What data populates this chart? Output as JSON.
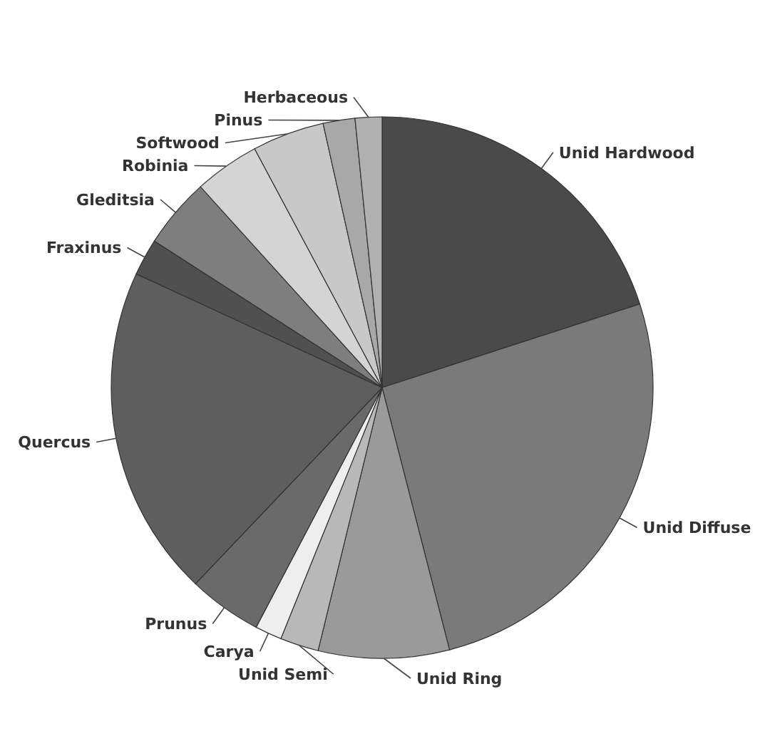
{
  "chart_data": {
    "type": "pie",
    "categories": [
      "Unid Hardwood",
      "Unid Diffuse",
      "Unid Ring",
      "Unid Semi",
      "Carya",
      "Prunus",
      "Quercus",
      "Fraxinus",
      "Gleditsia",
      "Robinia",
      "Softwood",
      "Pinus",
      "Herbaceous"
    ],
    "values": [
      20,
      26,
      7.8,
      2.3,
      1.6,
      4.4,
      19.8,
      2.2,
      4.2,
      3.9,
      4.3,
      1.9,
      1.6
    ],
    "colors": [
      "#4a4a4a",
      "#7a7a7a",
      "#9a9a9a",
      "#b8b8b8",
      "#eeeeee",
      "#6a6a6a",
      "#5e5e5e",
      "#505050",
      "#7e7e7e",
      "#d4d4d4",
      "#c8c8c8",
      "#a8a8a8",
      "#b0b0b0"
    ]
  }
}
